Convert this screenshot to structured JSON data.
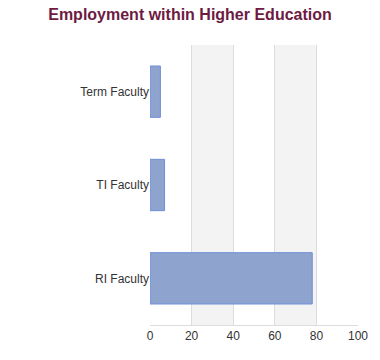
{
  "chart_data": {
    "type": "bar",
    "title": "Employment within Higher Education",
    "orientation": "horizontal",
    "categories": [
      "Term Faculty",
      "TI Faculty",
      "RI Faculty"
    ],
    "values": [
      5,
      7,
      78
    ],
    "color": "#8fa3cf",
    "xlim": [
      0,
      100
    ],
    "xticks": [
      0,
      20,
      40,
      60,
      80,
      100
    ],
    "grid": true
  }
}
